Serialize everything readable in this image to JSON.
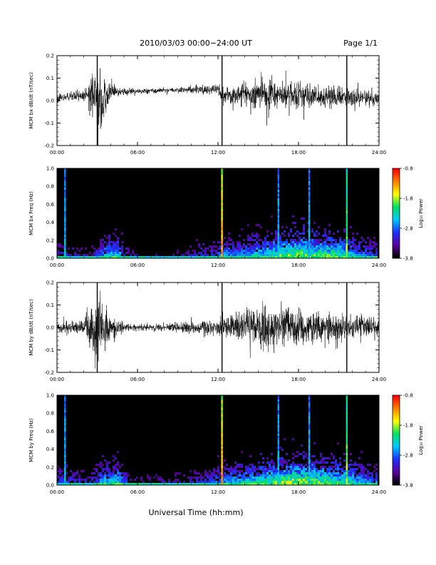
{
  "header": {
    "title": "2010/03/03  00:00−24:00 UT",
    "page": "Page 1/1"
  },
  "footer": {
    "xlabel": "Universal Time (hh:mm)"
  },
  "colors": {
    "trace": "#000000",
    "spectrogram_background": "#000000",
    "colormap": [
      "#000000",
      "#5a00a0",
      "#1a30ff",
      "#00c8ff",
      "#00e060",
      "#ffff00",
      "#ff8000",
      "#ff0000"
    ]
  },
  "chart_data": [
    {
      "type": "line",
      "ylabel": "MCM bx dB/dt (nT/sec)",
      "xlim": [
        0,
        24
      ],
      "ylim": [
        -0.2,
        0.2
      ],
      "x_ticks": [
        "00:00",
        "06:00",
        "12:00",
        "18:00",
        "24:00"
      ],
      "y_ticks": [
        "0.2",
        "0.1",
        "0.0",
        "-0.1",
        "-0.2"
      ],
      "series": [
        {
          "x": [
            0,
            1,
            2,
            2.5,
            3,
            3.5,
            4,
            5,
            6,
            8,
            10,
            12,
            12.3,
            13,
            14,
            15,
            16,
            17,
            18,
            19,
            20,
            21,
            22,
            23,
            24
          ],
          "center": [
            0.01,
            0.015,
            0.02,
            0.03,
            0.0,
            0.0,
            0.04,
            0.04,
            0.04,
            0.045,
            0.05,
            0.05,
            0.02,
            0.02,
            0.03,
            0.03,
            0.03,
            0.03,
            0.025,
            0.02,
            0.02,
            0.015,
            0.015,
            0.01,
            0.01
          ],
          "amplitude": [
            0.02,
            0.02,
            0.03,
            0.08,
            0.15,
            0.12,
            0.03,
            0.015,
            0.012,
            0.012,
            0.015,
            0.03,
            0.03,
            0.04,
            0.06,
            0.07,
            0.07,
            0.06,
            0.07,
            0.06,
            0.06,
            0.05,
            0.045,
            0.035,
            0.03
          ]
        }
      ],
      "spikes_x": [
        3.0,
        12.3,
        21.6
      ]
    },
    {
      "type": "heatmap",
      "ylabel": "MCM bx Freq (Hz)",
      "xlim": [
        0,
        24
      ],
      "ylim": [
        0,
        1.0
      ],
      "x_ticks": [
        "00:00",
        "06:00",
        "12:00",
        "18:00",
        "24:00"
      ],
      "y_ticks": [
        "1.0",
        "0.8",
        "0.6",
        "0.4",
        "0.2",
        "0.0"
      ],
      "colorbar": {
        "label": "Log₁₀ Power",
        "range": [
          -3.8,
          -0.8
        ],
        "ticks": [
          "-0.8",
          "-1.8",
          "-2.8",
          "-3.8"
        ]
      },
      "activity": [
        0.35,
        0.3,
        0.25,
        0.5,
        0.6,
        0.25,
        0.2,
        0.2,
        0.2,
        0.25,
        0.35,
        0.35,
        0.5,
        0.45,
        0.55,
        0.6,
        0.7,
        0.75,
        0.75,
        0.7,
        0.7,
        0.65,
        0.5,
        0.4
      ],
      "stripes_x": [
        0.6,
        12.3,
        16.5,
        18.8,
        21.6
      ]
    },
    {
      "type": "line",
      "ylabel": "MCM by dB/dt (nT/sec)",
      "xlim": [
        0,
        24
      ],
      "ylim": [
        -0.2,
        0.2
      ],
      "x_ticks": [
        "00:00",
        "06:00",
        "12:00",
        "18:00",
        "24:00"
      ],
      "y_ticks": [
        "0.2",
        "0.1",
        "0.0",
        "-0.1",
        "-0.2"
      ],
      "series": [
        {
          "x": [
            0,
            1,
            2,
            2.5,
            3,
            3.5,
            4,
            5,
            6,
            8,
            10,
            12,
            12.3,
            13,
            14,
            15,
            16,
            17,
            18,
            19,
            20,
            21,
            22,
            23,
            24
          ],
          "center": [
            0.0,
            0.0,
            0.0,
            0.0,
            0.0,
            0.0,
            0.0,
            0.0,
            0.0,
            0.0,
            0.0,
            0.0,
            0.0,
            0.0,
            0.0,
            0.0,
            0.0,
            0.0,
            0.0,
            0.0,
            0.0,
            0.0,
            0.0,
            0.0,
            0.0
          ],
          "amplitude": [
            0.03,
            0.03,
            0.035,
            0.1,
            0.17,
            0.14,
            0.05,
            0.02,
            0.015,
            0.015,
            0.03,
            0.04,
            0.04,
            0.06,
            0.08,
            0.09,
            0.1,
            0.1,
            0.09,
            0.08,
            0.07,
            0.06,
            0.05,
            0.045,
            0.04
          ]
        }
      ],
      "spikes_x": [
        3.0,
        12.3,
        21.6
      ]
    },
    {
      "type": "heatmap",
      "ylabel": "MCM by Freq (Hz)",
      "xlim": [
        0,
        24
      ],
      "ylim": [
        0,
        1.0
      ],
      "x_ticks": [
        "00:00",
        "06:00",
        "12:00",
        "18:00",
        "24:00"
      ],
      "y_ticks": [
        "1.0",
        "0.8",
        "0.6",
        "0.4",
        "0.2",
        "0.0"
      ],
      "colorbar": {
        "label": "Log₁₀ Power",
        "range": [
          -3.8,
          -0.8
        ],
        "ticks": [
          "-0.8",
          "-1.8",
          "-2.8",
          "-3.8"
        ]
      },
      "activity": [
        0.4,
        0.35,
        0.3,
        0.55,
        0.6,
        0.3,
        0.25,
        0.25,
        0.25,
        0.3,
        0.35,
        0.4,
        0.5,
        0.55,
        0.6,
        0.65,
        0.75,
        0.8,
        0.8,
        0.75,
        0.7,
        0.65,
        0.55,
        0.45
      ],
      "stripes_x": [
        0.6,
        12.3,
        16.5,
        18.8,
        21.6
      ]
    }
  ]
}
